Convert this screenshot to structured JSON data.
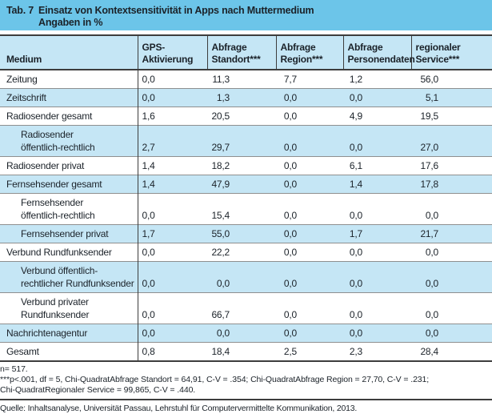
{
  "header": {
    "tab_label": "Tab. 7",
    "title": "Einsatz von Kontextsensitivität in Apps nach Muttermedium",
    "subtitle": "Angaben in %"
  },
  "table": {
    "columns": [
      {
        "lines": [
          "Medium"
        ]
      },
      {
        "lines": [
          "GPS-",
          "Aktivierung"
        ]
      },
      {
        "lines": [
          "Abfrage",
          "Standort***"
        ]
      },
      {
        "lines": [
          "Abfrage",
          "Region***"
        ]
      },
      {
        "lines": [
          "Abfrage",
          "Personendaten"
        ]
      },
      {
        "lines": [
          "regionaler",
          "Service***"
        ]
      }
    ],
    "rows": [
      {
        "label_lines": [
          "Zeitung"
        ],
        "indent": false,
        "values": [
          "0,0",
          "11,3",
          "7,7",
          "1,2",
          "56,0"
        ]
      },
      {
        "label_lines": [
          "Zeitschrift"
        ],
        "indent": false,
        "values": [
          "0,0",
          "1,3",
          "0,0",
          "0,0",
          "5,1"
        ]
      },
      {
        "label_lines": [
          "Radiosender gesamt"
        ],
        "indent": false,
        "values": [
          "1,6",
          "20,5",
          "0,0",
          "4,9",
          "19,5"
        ]
      },
      {
        "label_lines": [
          "Radiosender",
          "öffentlich-rechtlich"
        ],
        "indent": true,
        "values": [
          "2,7",
          "29,7",
          "0,0",
          "0,0",
          "27,0"
        ]
      },
      {
        "label_lines": [
          "Radiosender privat"
        ],
        "indent": false,
        "values": [
          "1,4",
          "18,2",
          "0,0",
          "6,1",
          "17,6"
        ]
      },
      {
        "label_lines": [
          "Fernsehsender gesamt"
        ],
        "indent": false,
        "values": [
          "1,4",
          "47,9",
          "0,0",
          "1,4",
          "17,8"
        ]
      },
      {
        "label_lines": [
          "Fernsehsender",
          "öffentlich-rechtlich"
        ],
        "indent": true,
        "values": [
          "0,0",
          "15,4",
          "0,0",
          "0,0",
          "0,0"
        ]
      },
      {
        "label_lines": [
          "Fernsehsender privat"
        ],
        "indent": true,
        "values": [
          "1,7",
          "55,0",
          "0,0",
          "1,7",
          "21,7"
        ]
      },
      {
        "label_lines": [
          "Verbund Rundfunksender"
        ],
        "indent": false,
        "values": [
          "0,0",
          "22,2",
          "0,0",
          "0,0",
          "0,0"
        ]
      },
      {
        "label_lines": [
          "Verbund öffentlich-",
          "rechtlicher Rundfunksender"
        ],
        "indent": true,
        "values": [
          "0,0",
          "0,0",
          "0,0",
          "0,0",
          "0,0"
        ]
      },
      {
        "label_lines": [
          "Verbund privater",
          "Rundfunksender"
        ],
        "indent": true,
        "values": [
          "0,0",
          "66,7",
          "0,0",
          "0,0",
          "0,0"
        ]
      },
      {
        "label_lines": [
          "Nachrichtenagentur"
        ],
        "indent": false,
        "values": [
          "0,0",
          "0,0",
          "0,0",
          "0,0",
          "0,0"
        ]
      },
      {
        "label_lines": [
          "Gesamt"
        ],
        "indent": false,
        "values": [
          "0,8",
          "18,4",
          "2,5",
          "2,3",
          "28,4"
        ]
      }
    ]
  },
  "footnotes": {
    "n": "n= 517.",
    "sig_line1": "***p<.001, df = 5, Chi-QuadratAbfrage Standort = 64,91, C-V = .354; Chi-QuadratAbfrage Region = 27,70, C-V = .231;",
    "sig_line2": "Chi-QuadratRegionaler Service = 99,865, C-V = .440.",
    "source": "Quelle: Inhaltsanalyse, Universität Passau, Lehrstuhl für Computervermittelte Kommunikation, 2013."
  },
  "colors": {
    "title_band": "#6cc5e9",
    "row_alt": "#c5e6f5",
    "border_dark": "#3d3d3d",
    "row_separator": "#8f8f8f",
    "text": "#1b2229"
  }
}
